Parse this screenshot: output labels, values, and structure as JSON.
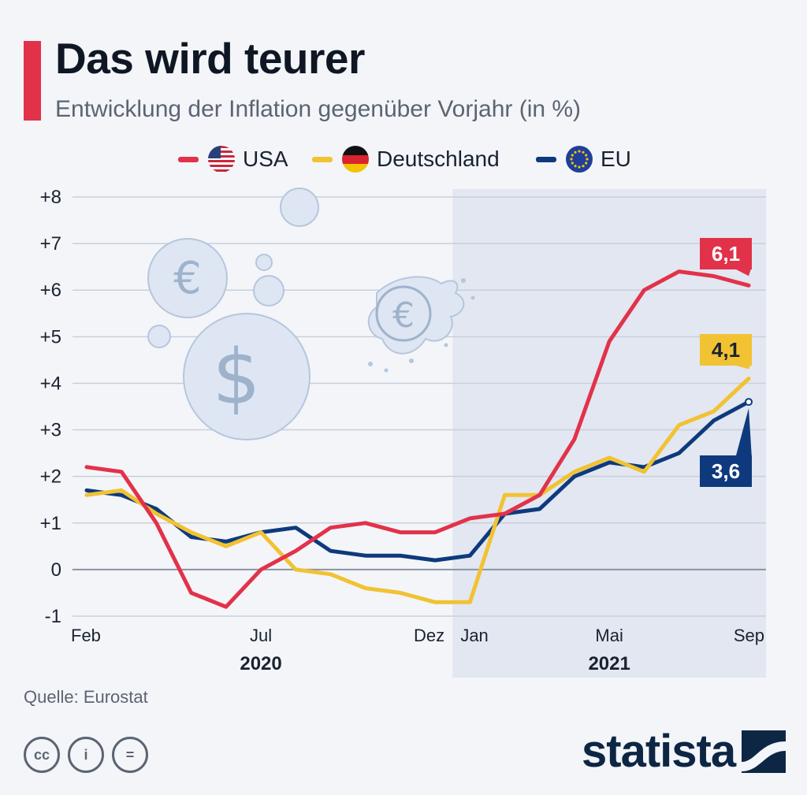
{
  "header": {
    "title": "Das wird teurer",
    "subtitle": "Entwicklung der Inflation gegenüber Vorjahr (in %)"
  },
  "legend": [
    {
      "label": "USA",
      "color": "#e2324a",
      "flag": "us-flag-icon"
    },
    {
      "label": "Deutschland",
      "color": "#f1c232",
      "flag": "germany-flag-icon"
    },
    {
      "label": "EU",
      "color": "#0e3a7d",
      "flag": "eu-flag-icon"
    }
  ],
  "chart_data": {
    "type": "line",
    "title": "Das wird teurer",
    "subtitle": "Entwicklung der Inflation gegenüber Vorjahr (in %)",
    "x": [
      "2020-02",
      "2020-03",
      "2020-04",
      "2020-05",
      "2020-06",
      "2020-07",
      "2020-08",
      "2020-09",
      "2020-10",
      "2020-11",
      "2020-12",
      "2021-01",
      "2021-02",
      "2021-03",
      "2021-04",
      "2021-05",
      "2021-06",
      "2021-07",
      "2021-08",
      "2021-09"
    ],
    "x_tick_labels": [
      {
        "x": "2020-02",
        "label": "Feb"
      },
      {
        "x": "2020-07",
        "label": "Jul"
      },
      {
        "x": "2020-12",
        "label": "Dez"
      },
      {
        "x": "2021-01",
        "label": "Jan"
      },
      {
        "x": "2021-05",
        "label": "Mai"
      },
      {
        "x": "2021-09",
        "label": "Sep"
      }
    ],
    "year_labels": [
      {
        "x": "2020-07",
        "label": "2020"
      },
      {
        "x": "2021-05",
        "label": "2021"
      }
    ],
    "y_ticks": [
      {
        "value": 8,
        "label": "+8"
      },
      {
        "value": 7,
        "label": "+7"
      },
      {
        "value": 6,
        "label": "+6"
      },
      {
        "value": 5,
        "label": "+5"
      },
      {
        "value": 4,
        "label": "+4"
      },
      {
        "value": 3,
        "label": "+3"
      },
      {
        "value": 2,
        "label": "+2"
      },
      {
        "value": 1,
        "label": "+1"
      },
      {
        "value": 0,
        "label": "0"
      },
      {
        "value": -1,
        "label": "-1"
      }
    ],
    "ylim": [
      -1,
      8
    ],
    "grid": true,
    "shaded_range": [
      "2021-01",
      "2021-09"
    ],
    "series": [
      {
        "name": "USA",
        "color": "#e2324a",
        "values": [
          2.2,
          2.1,
          1.0,
          -0.5,
          -0.8,
          0.0,
          0.4,
          0.9,
          1.0,
          0.8,
          0.8,
          1.1,
          1.2,
          1.6,
          2.8,
          4.9,
          6.0,
          6.4,
          6.3,
          6.1
        ],
        "end_label": "6,1"
      },
      {
        "name": "Deutschland",
        "color": "#f1c232",
        "values": [
          1.6,
          1.7,
          1.2,
          0.8,
          0.5,
          0.8,
          0.0,
          -0.1,
          -0.4,
          -0.5,
          -0.7,
          -0.7,
          1.6,
          1.6,
          2.1,
          2.4,
          2.1,
          3.1,
          3.4,
          4.1
        ],
        "end_label": "4,1"
      },
      {
        "name": "EU",
        "color": "#0e3a7d",
        "values": [
          1.7,
          1.6,
          1.3,
          0.7,
          0.6,
          0.8,
          0.9,
          0.4,
          0.3,
          0.3,
          0.2,
          0.3,
          1.2,
          1.3,
          2.0,
          2.3,
          2.2,
          2.5,
          3.2,
          3.6
        ],
        "end_label": "3,6"
      }
    ]
  },
  "footer": {
    "source": "Quelle: Eurostat",
    "cc_icons": [
      {
        "name": "cc-icon",
        "text": "cc"
      },
      {
        "name": "by-icon",
        "text": "i"
      },
      {
        "name": "nd-icon",
        "text": "="
      }
    ],
    "brand": "statista"
  }
}
